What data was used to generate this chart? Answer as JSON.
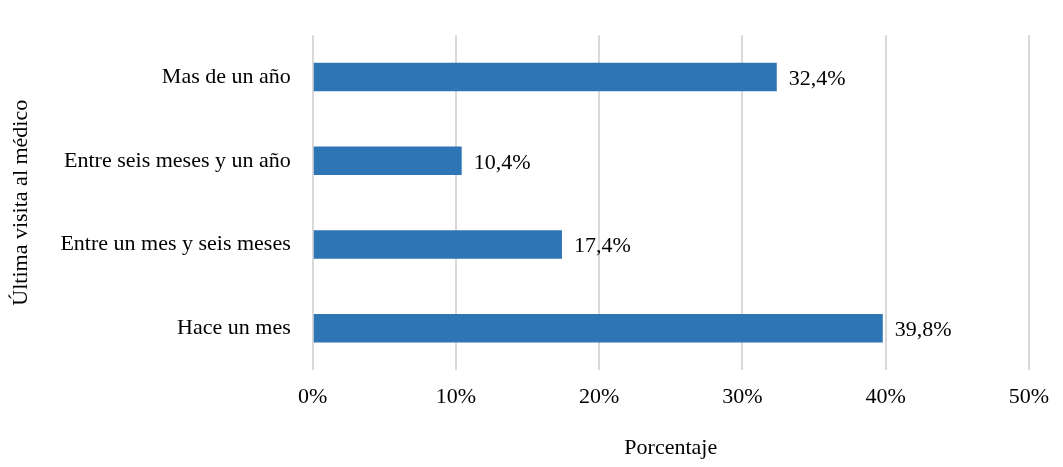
{
  "chart_data": {
    "type": "bar",
    "orientation": "horizontal",
    "xlabel": "Porcentaje",
    "ylabel": "Última visita al médico",
    "categories": [
      "Mas de un año",
      "Entre seis meses y un año",
      "Entre un mes y seis meses",
      "Hace un mes"
    ],
    "values": [
      32.4,
      10.4,
      17.4,
      39.8
    ],
    "color": "#2e75b6",
    "value_labels": [
      "32,4%",
      "10,4%",
      "17,4%",
      "39,8%"
    ],
    "xlim": [
      0,
      50
    ],
    "xticks": [
      {
        "value": 0,
        "label": "0%"
      },
      {
        "value": 10,
        "label": "10%"
      },
      {
        "value": 20,
        "label": "20%"
      },
      {
        "value": 30,
        "label": "30%"
      },
      {
        "value": 40,
        "label": "40%"
      },
      {
        "value": 50,
        "label": "50%"
      }
    ],
    "grid": "x",
    "legend": false
  }
}
